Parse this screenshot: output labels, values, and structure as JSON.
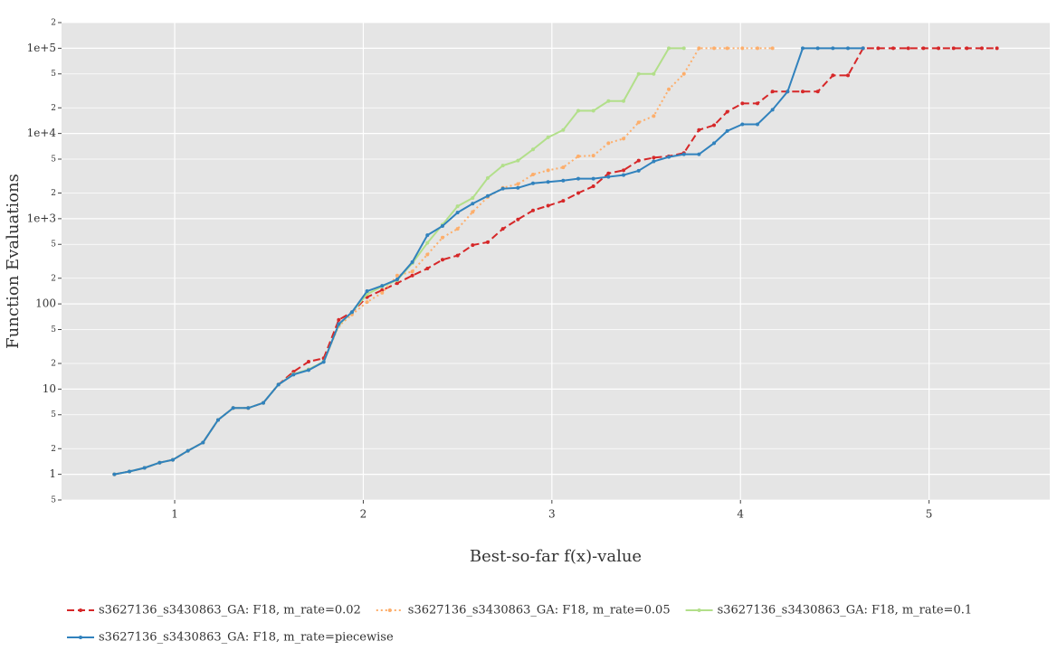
{
  "chart_data": {
    "type": "line",
    "x_label": "Best-so-far f(x)-value",
    "y_label": "Function Evaluations",
    "x": [
      0.68,
      0.76,
      0.84,
      0.92,
      0.99,
      1.07,
      1.15,
      1.23,
      1.31,
      1.39,
      1.47,
      1.55,
      1.63,
      1.71,
      1.79,
      1.87,
      1.94,
      2.02,
      2.1,
      2.18,
      2.26,
      2.34,
      2.42,
      2.5,
      2.58,
      2.66,
      2.74,
      2.82,
      2.9,
      2.98,
      3.06,
      3.14,
      3.22,
      3.3,
      3.38,
      3.46,
      3.54,
      3.62,
      3.7,
      3.78,
      3.86,
      3.93,
      4.01,
      4.09,
      4.17,
      4.25,
      4.33,
      4.41,
      4.49,
      4.57,
      4.65,
      4.73,
      4.81,
      4.89,
      4.97,
      5.05,
      5.13,
      5.2,
      5.28,
      5.36
    ],
    "series": [
      {
        "name": "s3627136_s3430863_GA: F18, m_rate=0.02",
        "color": "#d62728",
        "line_style": "dashed",
        "values": [
          1,
          1.08,
          1.19,
          1.37,
          1.48,
          1.89,
          2.36,
          4.35,
          6,
          6,
          6.9,
          11.3,
          16,
          21,
          23,
          65,
          80,
          120,
          145,
          175,
          215,
          260,
          330,
          370,
          490,
          530,
          760,
          980,
          1250,
          1420,
          1620,
          2000,
          2400,
          3400,
          3700,
          4800,
          5200,
          5400,
          5900,
          11000,
          12500,
          18000,
          22500,
          22500,
          31000,
          31000,
          31000,
          31000,
          48000,
          48000,
          100000,
          100000,
          100000,
          100000,
          100000,
          100000,
          100000,
          100000,
          100000,
          100000
        ]
      },
      {
        "name": "s3627136_s3430863_GA: F18, m_rate=0.05",
        "color": "#fdae6b",
        "line_style": "dotted",
        "values": [
          1,
          1.08,
          1.19,
          1.37,
          1.48,
          1.89,
          2.36,
          4.35,
          6,
          6,
          6.9,
          11.3,
          15,
          17,
          21,
          55,
          75,
          105,
          135,
          215,
          240,
          380,
          600,
          760,
          1200,
          1800,
          2300,
          2550,
          3300,
          3700,
          4000,
          5400,
          5500,
          7700,
          8700,
          13500,
          16000,
          33000,
          50000,
          100000,
          100000,
          100000,
          100000,
          100000,
          100000,
          null,
          null,
          null,
          null,
          null,
          null,
          null,
          null,
          null,
          null,
          null,
          null,
          null,
          null,
          null
        ]
      },
      {
        "name": "s3627136_s3430863_GA: F18, m_rate=0.1",
        "color": "#b2df8a",
        "line_style": "solid",
        "values": [
          1,
          1.08,
          1.19,
          1.37,
          1.48,
          1.89,
          2.36,
          4.35,
          6,
          6,
          6.9,
          11.3,
          15,
          17,
          21,
          57,
          80,
          130,
          160,
          190,
          300,
          520,
          850,
          1400,
          1750,
          3000,
          4200,
          4800,
          6500,
          9000,
          11000,
          18500,
          18500,
          24000,
          24000,
          50000,
          50000,
          100000,
          100000,
          null,
          null,
          null,
          null,
          null,
          null,
          null,
          null,
          null,
          null,
          null,
          null,
          null,
          null,
          null,
          null,
          null,
          null,
          null,
          null,
          null
        ]
      },
      {
        "name": "s3627136_s3430863_GA: F18, m_rate=piecewise",
        "color": "#3182bd",
        "line_style": "solid",
        "values": [
          1,
          1.08,
          1.19,
          1.37,
          1.48,
          1.89,
          2.36,
          4.35,
          6,
          6,
          6.9,
          11.3,
          14.8,
          16.7,
          20.8,
          58,
          80,
          141,
          163,
          194,
          310,
          640,
          820,
          1180,
          1500,
          1850,
          2250,
          2300,
          2600,
          2700,
          2800,
          2950,
          2950,
          3100,
          3250,
          3650,
          4700,
          5300,
          5700,
          5700,
          7700,
          10700,
          12800,
          12800,
          19000,
          31000,
          100000,
          100000,
          100000,
          100000,
          100000,
          null,
          null,
          null,
          null,
          null,
          null,
          null,
          null,
          null
        ]
      }
    ],
    "xlim": [
      0.4,
      5.64
    ],
    "xticks": [
      1,
      2,
      3,
      4,
      5
    ],
    "ylim": [
      0.5,
      200000
    ],
    "log_y": true,
    "yticks": [
      {
        "value": 0.5,
        "label": "5"
      },
      1,
      2,
      5,
      10,
      {
        "value": 20,
        "label": "2"
      },
      {
        "value": 50,
        "label": "5"
      },
      100,
      {
        "value": 200,
        "label": "2"
      },
      {
        "value": 500,
        "label": "5"
      },
      {
        "value": 1000,
        "label": "1e+3"
      },
      {
        "value": 2000,
        "label": "2"
      },
      {
        "value": 5000,
        "label": "5"
      },
      {
        "value": 10000,
        "label": "1e+4"
      },
      {
        "value": 20000,
        "label": "2"
      },
      {
        "value": 50000,
        "label": "5"
      },
      {
        "value": 100000,
        "label": "1e+5"
      },
      {
        "value": 200000,
        "label": "2"
      }
    ],
    "grid": true,
    "legend": "bottom"
  }
}
